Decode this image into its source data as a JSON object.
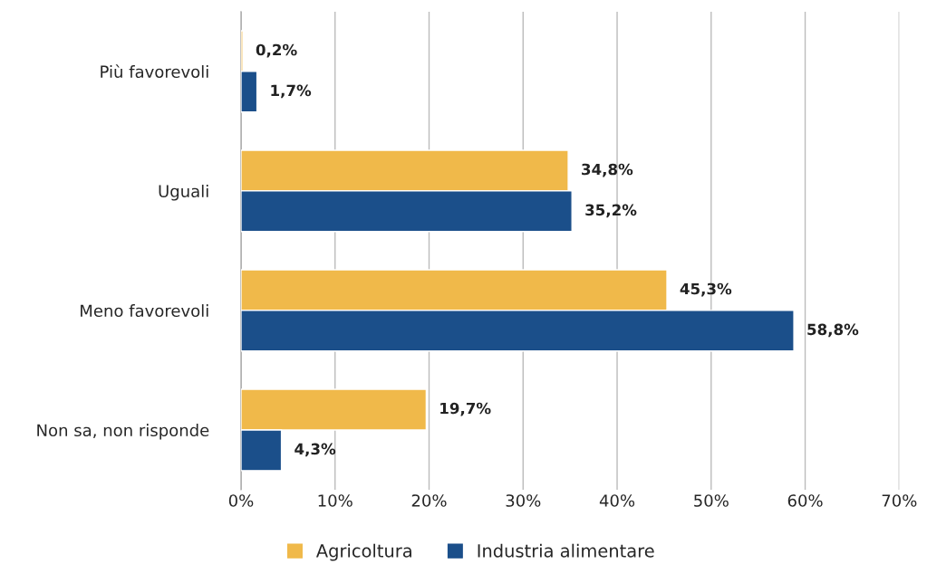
{
  "chart_data": {
    "type": "bar",
    "orientation": "horizontal",
    "categories": [
      "Più favorevoli",
      "Uguali",
      "Meno favorevoli",
      "Non sa, non risponde"
    ],
    "series": [
      {
        "name": "Agricoltura",
        "color": "#f0b94a",
        "values": [
          0.2,
          34.8,
          45.3,
          19.7
        ],
        "value_labels": [
          "0,2%",
          "34,8%",
          "45,3%",
          "19,7%"
        ]
      },
      {
        "name": "Industria alimentare",
        "color": "#1b4f8a",
        "values": [
          1.7,
          35.2,
          58.8,
          4.3
        ],
        "value_labels": [
          "1,7%",
          "35,2%",
          "58,8%",
          "4,3%"
        ]
      }
    ],
    "xlim": [
      0,
      70
    ],
    "xticks": [
      {
        "value": 0,
        "label": "0%"
      },
      {
        "value": 10,
        "label": "10%"
      },
      {
        "value": 20,
        "label": "20%"
      },
      {
        "value": 30,
        "label": "30%"
      },
      {
        "value": 40,
        "label": "40%"
      },
      {
        "value": 50,
        "label": "50%"
      },
      {
        "value": 60,
        "label": "60%"
      },
      {
        "value": 70,
        "label": "70%"
      }
    ],
    "grid": "x",
    "legend": "bottom"
  }
}
